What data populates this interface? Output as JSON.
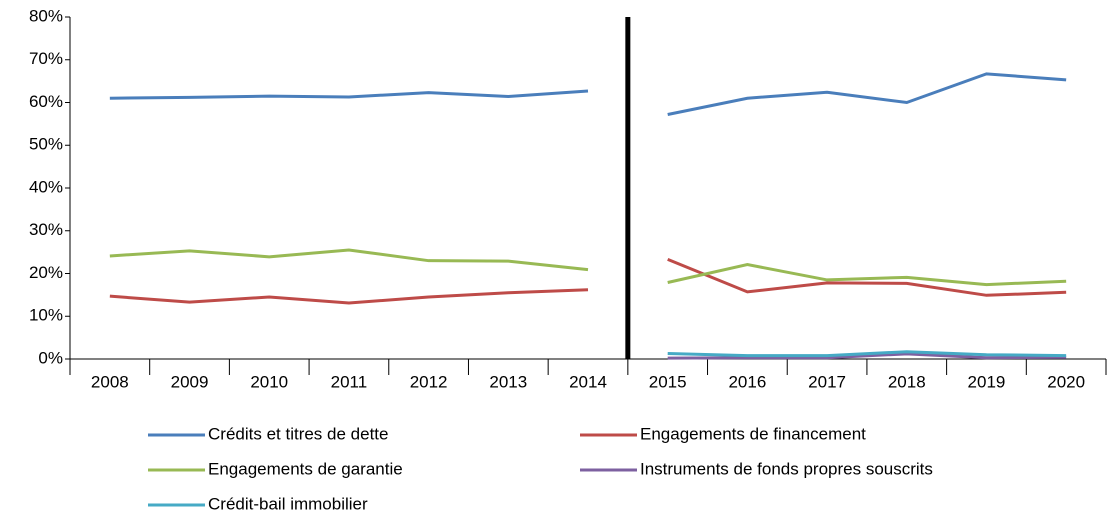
{
  "chart_data": {
    "type": "line",
    "categories": [
      "2008",
      "2009",
      "2010",
      "2011",
      "2012",
      "2013",
      "2014",
      "2015",
      "2016",
      "2017",
      "2018",
      "2019",
      "2020"
    ],
    "break_after": 6,
    "series": [
      {
        "name": "Crédits et titres de dette",
        "color": "#4a7ebb",
        "values": [
          61,
          61.2,
          61.5,
          61.3,
          62.3,
          61.4,
          62.7,
          57.2,
          61,
          62.4,
          60,
          66.7,
          65.3
        ]
      },
      {
        "name": "Engagements de financement",
        "color": "#be4b48",
        "values": [
          14.7,
          13.3,
          14.5,
          13.1,
          14.5,
          15.5,
          16.2,
          23.3,
          15.7,
          17.8,
          17.7,
          14.9,
          15.6
        ]
      },
      {
        "name": "Engagements de garantie",
        "color": "#98b954",
        "values": [
          24.1,
          25.3,
          23.9,
          25.5,
          23,
          22.9,
          20.9,
          17.9,
          22.1,
          18.5,
          19.1,
          17.4,
          18.2
        ]
      },
      {
        "name": "Instruments de fonds propres souscrits",
        "color": "#7d60a0",
        "values": [
          null,
          null,
          null,
          null,
          null,
          null,
          null,
          0.2,
          0.3,
          0.3,
          1.2,
          0.3,
          0.4
        ]
      },
      {
        "name": "Crédit-bail immobilier",
        "color": "#46aac5",
        "values": [
          null,
          null,
          null,
          null,
          null,
          null,
          null,
          1.3,
          0.8,
          0.8,
          1.7,
          1,
          0.8
        ]
      }
    ],
    "ylim": [
      0,
      80
    ],
    "yticks": [
      {
        "value": 0,
        "label": "0%"
      },
      {
        "value": 10,
        "label": "10%"
      },
      {
        "value": 20,
        "label": "20%"
      },
      {
        "value": 30,
        "label": "30%"
      },
      {
        "value": 40,
        "label": "40%"
      },
      {
        "value": 50,
        "label": "50%"
      },
      {
        "value": 60,
        "label": "60%"
      },
      {
        "value": 70,
        "label": "70%"
      },
      {
        "value": 80,
        "label": "80%"
      }
    ],
    "grid": false,
    "legend": "bottom"
  }
}
